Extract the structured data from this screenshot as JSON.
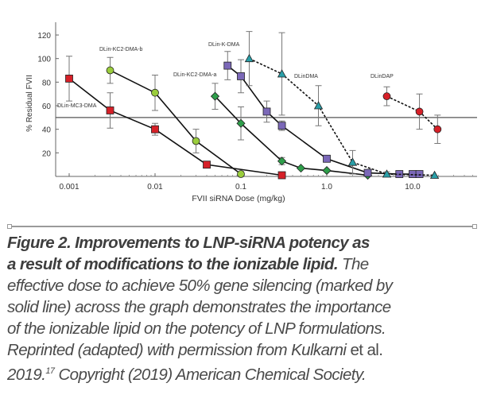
{
  "chart_data": {
    "type": "line",
    "xlabel": "FVII siRNA Dose (mg/kg)",
    "ylabel": "% Residual FVII",
    "xscale": "log",
    "xlim": [
      0.0007,
      25
    ],
    "ylim": [
      0,
      130
    ],
    "xticks": [
      "0.001",
      "0.01",
      "0.1",
      "1.0",
      "10.0"
    ],
    "yticks": [
      "20",
      "40",
      "60",
      "80",
      "100",
      "120"
    ],
    "reference_line_y": 50,
    "grid": false,
    "series": [
      {
        "name": "DLin-MC3-DMA",
        "marker": "square",
        "color": "#d62028",
        "dash": false,
        "x": [
          0.001,
          0.003,
          0.01,
          0.04,
          0.3
        ],
        "y": [
          83,
          56,
          40,
          10,
          1
        ],
        "err": [
          19,
          15,
          5,
          0,
          0
        ]
      },
      {
        "name": "DLin-KC2-DMA-b",
        "marker": "circle",
        "color": "#9acd3c",
        "dash": false,
        "x": [
          0.003,
          0.01,
          0.03,
          0.1
        ],
        "y": [
          90,
          71,
          30,
          2
        ],
        "err": [
          11,
          15,
          10,
          2
        ]
      },
      {
        "name": "DLin-KC2-DMA-a",
        "marker": "diamond",
        "color": "#2e9e4a",
        "dash": false,
        "x": [
          0.05,
          0.1,
          0.3,
          0.5,
          1.0,
          3.0
        ],
        "y": [
          68,
          45,
          13,
          7,
          5,
          1
        ],
        "err": [
          11,
          14,
          3,
          0,
          0,
          0
        ]
      },
      {
        "name": "DLin-K-DMA",
        "marker": "square",
        "color": "#7b68b8",
        "dash": false,
        "x": [
          0.07,
          0.1,
          0.2,
          0.3,
          1.0,
          3.0,
          7.0,
          10.0,
          12.0
        ],
        "y": [
          94,
          85,
          55,
          43,
          15,
          3,
          2,
          2,
          2
        ],
        "err": [
          12,
          14,
          9,
          4,
          0,
          0,
          0,
          0,
          0
        ]
      },
      {
        "name": "DLinDMA",
        "marker": "triangle",
        "color": "#2a9fa8",
        "dash": true,
        "x": [
          0.125,
          0.3,
          0.8,
          2.0,
          5.0,
          18.0
        ],
        "y": [
          100,
          87,
          60,
          12,
          2,
          1
        ],
        "err": [
          23,
          35,
          17,
          10,
          2,
          0
        ]
      },
      {
        "name": "DLinDAP",
        "marker": "circle",
        "color": "#d62028",
        "dash": true,
        "x": [
          5.0,
          12.0,
          19.5
        ],
        "y": [
          68,
          55,
          40
        ],
        "err": [
          8,
          15,
          12
        ]
      }
    ]
  },
  "caption": {
    "bold_line1": "Figure 2. Improvements to LNP-siRNA potency as",
    "bold_line2": "a result of modifications to the ionizable lipid.",
    "line2_rest": " The",
    "line3": "effective dose to achieve 50% gene silencing (marked by",
    "line4": "solid line) across the graph demonstrates the importance",
    "line5": "of the ionizable lipid on the potency of LNP formulations.",
    "line6_a": "Reprinted (adapted) with permission from Kulkarni",
    "line6_b": " et al.",
    "line7_a": "2019.",
    "line7_sup": "17",
    "line7_b": " Copyright (2019) American Chemical Society."
  }
}
